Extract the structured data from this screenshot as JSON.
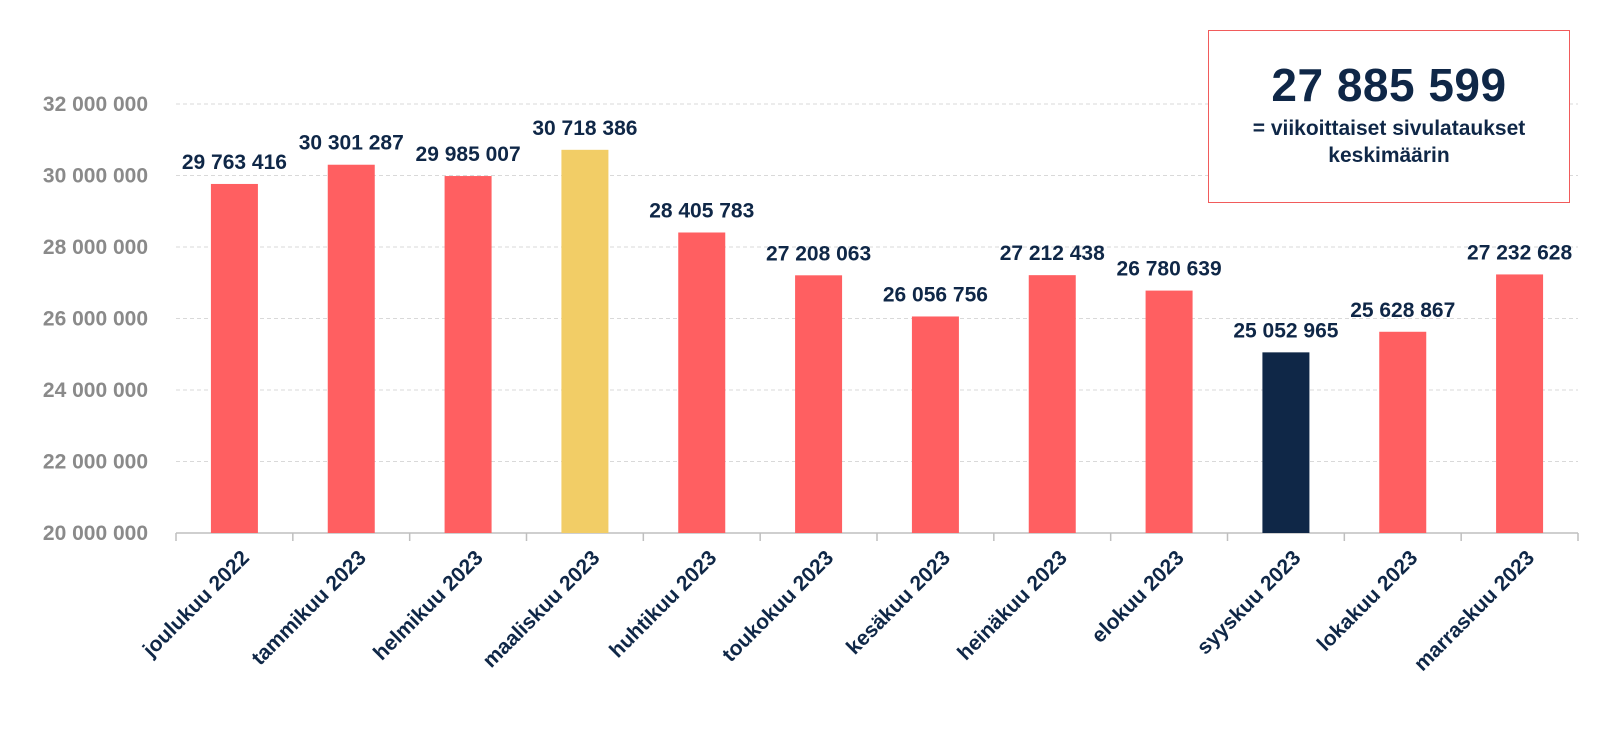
{
  "chart_data": {
    "type": "bar",
    "categories": [
      "joulukuu 2022",
      "tammikuu 2023",
      "helmikuu 2023",
      "maaliskuu 2023",
      "huhtikuu 2023",
      "toukokuu 2023",
      "kesäkuu 2023",
      "heinäkuu 2023",
      "elokuu 2023",
      "syyskuu 2023",
      "lokakuu 2023",
      "marraskuu 2023"
    ],
    "values": [
      29763416,
      30301287,
      29985007,
      30718386,
      28405783,
      27208063,
      26056756,
      27212438,
      26780639,
      25052965,
      25628867,
      27232628
    ],
    "value_labels": [
      "29 763 416",
      "30 301 287",
      "29 985 007",
      "30 718 386",
      "28 405 783",
      "27 208 063",
      "26 056 756",
      "27 212 438",
      "26 780 639",
      "25 052 965",
      "25 628 867",
      "27 232 628"
    ],
    "bar_colors": [
      "#ff5f61",
      "#ff5f61",
      "#ff5f61",
      "#f2cd66",
      "#ff5f61",
      "#ff5f61",
      "#ff5f61",
      "#ff5f61",
      "#ff5f61",
      "#0f2747",
      "#ff5f61",
      "#ff5f61"
    ],
    "ylim": [
      20000000,
      32000000
    ],
    "yticks": [
      20000000,
      22000000,
      24000000,
      26000000,
      28000000,
      30000000,
      32000000
    ],
    "ytick_labels": [
      "20 000 000",
      "22 000 000",
      "24 000 000",
      "26 000 000",
      "28 000 000",
      "30 000 000",
      "32 000 000"
    ],
    "grid": true,
    "title": "",
    "xlabel": "",
    "ylabel": ""
  },
  "callout": {
    "value": "27 885 599",
    "caption": "= viikoittaiset sivulataukset keskimäärin",
    "border_color": "#f15b5b"
  },
  "colors": {
    "text_dark": "#0f2747",
    "axis_text": "#8a8a8a",
    "grid": "#d9d9d9"
  }
}
